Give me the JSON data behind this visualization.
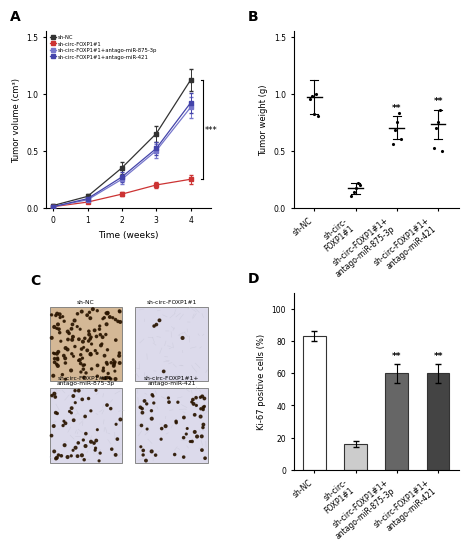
{
  "panel_A": {
    "xlabel": "Time (weeks)",
    "ylabel": "Tumor volume (cm³)",
    "xlim": [
      -0.2,
      4.6
    ],
    "ylim": [
      0,
      1.55
    ],
    "yticks": [
      0.0,
      0.5,
      1.0,
      1.5
    ],
    "xticks": [
      0,
      1,
      2,
      3,
      4
    ],
    "series": [
      {
        "label": "sh-NC",
        "color": "#333333",
        "x": [
          0,
          1,
          2,
          3,
          4
        ],
        "y": [
          0.02,
          0.1,
          0.35,
          0.65,
          1.12
        ],
        "yerr": [
          0.01,
          0.02,
          0.05,
          0.07,
          0.1
        ]
      },
      {
        "label": "sh-circ-FOXP1#1",
        "color": "#cc3333",
        "x": [
          0,
          1,
          2,
          3,
          4
        ],
        "y": [
          0.01,
          0.05,
          0.12,
          0.2,
          0.25
        ],
        "yerr": [
          0.005,
          0.01,
          0.02,
          0.03,
          0.04
        ]
      },
      {
        "label": "sh-circ-FOXP1#1+antago-miR-875-3p",
        "color": "#7777cc",
        "x": [
          0,
          1,
          2,
          3,
          4
        ],
        "y": [
          0.01,
          0.07,
          0.25,
          0.5,
          0.88
        ],
        "yerr": [
          0.005,
          0.015,
          0.04,
          0.06,
          0.09
        ]
      },
      {
        "label": "sh-circ-FOXP1#1+antago-miR-421",
        "color": "#4444aa",
        "x": [
          0,
          1,
          2,
          3,
          4
        ],
        "y": [
          0.01,
          0.08,
          0.27,
          0.52,
          0.92
        ],
        "yerr": [
          0.005,
          0.015,
          0.04,
          0.06,
          0.09
        ]
      }
    ],
    "significance": "***",
    "sig_y_top": 1.12,
    "sig_y_bot": 0.25,
    "sig_x": 4.35
  },
  "panel_B": {
    "ylabel": "Tumor weight (g)",
    "ylim": [
      0,
      1.55
    ],
    "yticks": [
      0.0,
      0.5,
      1.0,
      1.5
    ],
    "categories": [
      "sh-NC",
      "sh-circ-\nFOXP1#1",
      "sh-circ-FOXP1#1+\nantago-miR-875-3p",
      "sh-circ-FOXP1#1+\nantago-miR-421"
    ],
    "means": [
      0.97,
      0.17,
      0.7,
      0.73
    ],
    "dots": [
      [
        0.95,
        0.98,
        0.82,
        1.0,
        0.8
      ],
      [
        0.1,
        0.14,
        0.17,
        0.22,
        0.2
      ],
      [
        0.56,
        0.68,
        0.75,
        0.83,
        0.6
      ],
      [
        0.52,
        0.7,
        0.75,
        0.86,
        0.5
      ]
    ],
    "errors": [
      0.15,
      0.05,
      0.1,
      0.13
    ],
    "significance": [
      "",
      "",
      "**",
      "**"
    ]
  },
  "panel_C": {
    "panel_labels_top": [
      "sh-NC",
      "sh-circ-FOXP1#1"
    ],
    "panel_labels_bot": [
      "sh-circ-FOXP1#1+\nantago-miR-875-3p",
      "sh-circ-FOXP1#1+\nantago-miR-421"
    ],
    "bg_colors": [
      "#d4b896",
      "#dcdaeb",
      "#dcdaeb",
      "#dcdaeb"
    ],
    "dot_colors": [
      "#2a1500",
      "#2a1500",
      "#2a1500",
      "#2a1500"
    ],
    "dot_counts": [
      130,
      5,
      55,
      55
    ],
    "fiber_counts": [
      30,
      60,
      55,
      50
    ]
  },
  "panel_D": {
    "ylabel": "Ki-67 positive cells (%)",
    "ylim": [
      0,
      110
    ],
    "yticks": [
      0,
      20,
      40,
      60,
      80,
      100
    ],
    "categories": [
      "sh-NC",
      "sh-circ-\nFOXP1#1",
      "sh-circ-FOXP1#1+\nantago-miR-875-3p",
      "sh-circ-FOXP1#1+\nantago-miR-421"
    ],
    "values": [
      83,
      16,
      60,
      60
    ],
    "errors": [
      3,
      2,
      6,
      6
    ],
    "bar_colors": [
      "#ffffff",
      "#cccccc",
      "#666666",
      "#444444"
    ],
    "bar_edgecolors": [
      "#333333",
      "#333333",
      "#333333",
      "#333333"
    ],
    "significance": [
      "",
      "",
      "**",
      "**"
    ]
  }
}
